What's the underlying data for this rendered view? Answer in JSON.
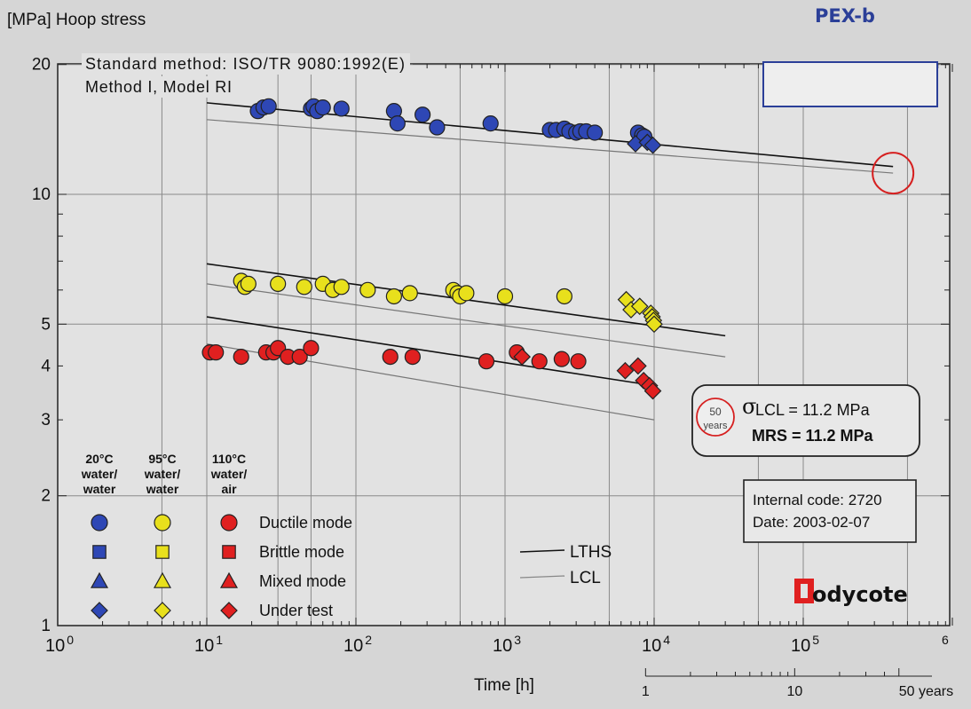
{
  "chart_data": {
    "type": "scatter",
    "title": "PEX-b",
    "ylabel": "[MPa] Hoop stress",
    "xlabel": "Time [h]",
    "x_scale": "log",
    "y_scale": "log",
    "xlim": [
      1,
      1000000
    ],
    "ylim": [
      1,
      22
    ],
    "grid": true,
    "x_ticks": [
      {
        "value": 1,
        "base": "10",
        "exp": "0"
      },
      {
        "value": 10,
        "base": "10",
        "exp": "1"
      },
      {
        "value": 100,
        "base": "10",
        "exp": "2"
      },
      {
        "value": 1000,
        "base": "10",
        "exp": "3"
      },
      {
        "value": 10000,
        "base": "10",
        "exp": "4"
      },
      {
        "value": 100000,
        "base": "10",
        "exp": "5"
      },
      {
        "value": 1000000,
        "base": "",
        "exp": "6"
      }
    ],
    "y_ticks": [
      {
        "value": 1,
        "label": "1"
      },
      {
        "value": 2,
        "label": "2"
      },
      {
        "value": 3,
        "label": "3"
      },
      {
        "value": 4,
        "label": "4"
      },
      {
        "value": 5,
        "label": "5"
      },
      {
        "value": 10,
        "label": "10"
      },
      {
        "value": 20,
        "label": "20"
      }
    ],
    "years_scale": [
      {
        "value": 8760,
        "label": "1"
      },
      {
        "value": 87600,
        "label": "10"
      },
      {
        "value": 438000,
        "label": "50 years"
      }
    ],
    "method_text": [
      "Standard method: ISO/TR 9080:1992(E)",
      "Method I, Model RI"
    ],
    "series": [
      {
        "name": "20°C water/water",
        "color": "#2e47b5",
        "ductile": [
          [
            22,
            15.6
          ],
          [
            24,
            15.9
          ],
          [
            26,
            16.0
          ],
          [
            50,
            15.8
          ],
          [
            52,
            16.0
          ],
          [
            55,
            15.6
          ],
          [
            60,
            15.9
          ],
          [
            80,
            15.8
          ],
          [
            180,
            15.6
          ],
          [
            190,
            14.6
          ],
          [
            280,
            15.3
          ],
          [
            350,
            14.3
          ],
          [
            800,
            14.6
          ],
          [
            2000,
            14.1
          ],
          [
            2200,
            14.1
          ],
          [
            2500,
            14.2
          ],
          [
            2700,
            14.0
          ],
          [
            3000,
            13.9
          ],
          [
            3200,
            14.0
          ],
          [
            3500,
            14.0
          ],
          [
            4000,
            13.9
          ],
          [
            7800,
            13.9
          ],
          [
            8300,
            13.7
          ],
          [
            8600,
            13.6
          ]
        ],
        "under_test": [
          [
            7500,
            13.1
          ],
          [
            9000,
            13.2
          ],
          [
            9800,
            13.0
          ]
        ],
        "lths": [
          [
            10,
            16.3
          ],
          [
            400000,
            11.6
          ]
        ],
        "lcl": [
          [
            10,
            14.9
          ],
          [
            400000,
            11.2
          ]
        ]
      },
      {
        "name": "95°C water/water",
        "color": "#e8e01c",
        "ductile": [
          [
            17,
            6.3
          ],
          [
            18,
            6.1
          ],
          [
            19,
            6.2
          ],
          [
            30,
            6.2
          ],
          [
            45,
            6.1
          ],
          [
            60,
            6.2
          ],
          [
            70,
            6.0
          ],
          [
            80,
            6.1
          ],
          [
            120,
            6.0
          ],
          [
            180,
            5.8
          ],
          [
            230,
            5.9
          ],
          [
            450,
            6.0
          ],
          [
            480,
            5.9
          ],
          [
            500,
            5.8
          ],
          [
            550,
            5.9
          ],
          [
            1000,
            5.8
          ],
          [
            2500,
            5.8
          ]
        ],
        "under_test": [
          [
            6500,
            5.7
          ],
          [
            7000,
            5.4
          ],
          [
            8000,
            5.5
          ],
          [
            9500,
            5.3
          ],
          [
            9700,
            5.2
          ],
          [
            9900,
            5.1
          ],
          [
            10000,
            5.0
          ]
        ],
        "lths": [
          [
            10,
            6.9
          ],
          [
            30000,
            4.7
          ]
        ],
        "lcl": [
          [
            10,
            6.2
          ],
          [
            30000,
            4.2
          ]
        ]
      },
      {
        "name": "110°C water/air",
        "color": "#e02020",
        "ductile": [
          [
            10.5,
            4.3
          ],
          [
            11.5,
            4.3
          ],
          [
            17,
            4.2
          ],
          [
            25,
            4.3
          ],
          [
            28,
            4.3
          ],
          [
            30,
            4.4
          ],
          [
            35,
            4.2
          ],
          [
            42,
            4.2
          ],
          [
            50,
            4.4
          ],
          [
            170,
            4.2
          ],
          [
            240,
            4.2
          ],
          [
            750,
            4.1
          ],
          [
            1200,
            4.3
          ],
          [
            1700,
            4.1
          ],
          [
            2400,
            4.15
          ],
          [
            3100,
            4.1
          ]
        ],
        "under_test": [
          [
            1300,
            4.2
          ],
          [
            6400,
            3.9
          ],
          [
            7800,
            4.0
          ],
          [
            8500,
            3.7
          ],
          [
            9300,
            3.6
          ],
          [
            9800,
            3.5
          ]
        ],
        "lths": [
          [
            10,
            5.2
          ],
          [
            10000,
            3.6
          ]
        ],
        "lcl": [
          [
            10,
            4.5
          ],
          [
            10000,
            3.0
          ]
        ]
      }
    ]
  },
  "legend": {
    "col_headers": [
      [
        "20°C",
        "water/",
        "water"
      ],
      [
        "95°C",
        "water/",
        "water"
      ],
      [
        "110°C",
        "water/",
        "air"
      ]
    ],
    "modes": [
      "Ductile mode",
      "Brittle mode",
      "Mixed mode",
      "Under test"
    ],
    "lines": [
      "LTHS",
      "LCL"
    ]
  },
  "result_box": {
    "badge_num": "50",
    "badge_unit": "years",
    "sigma": "σ",
    "sigma_text": "LCL = 11.2 MPa",
    "mrs": "MRS = 11.2 MPa"
  },
  "info_box": {
    "code": "Internal code: 2720",
    "date": "Date: 2003-02-07"
  },
  "logo": {
    "text": "odycote",
    "color": "#e02020"
  }
}
